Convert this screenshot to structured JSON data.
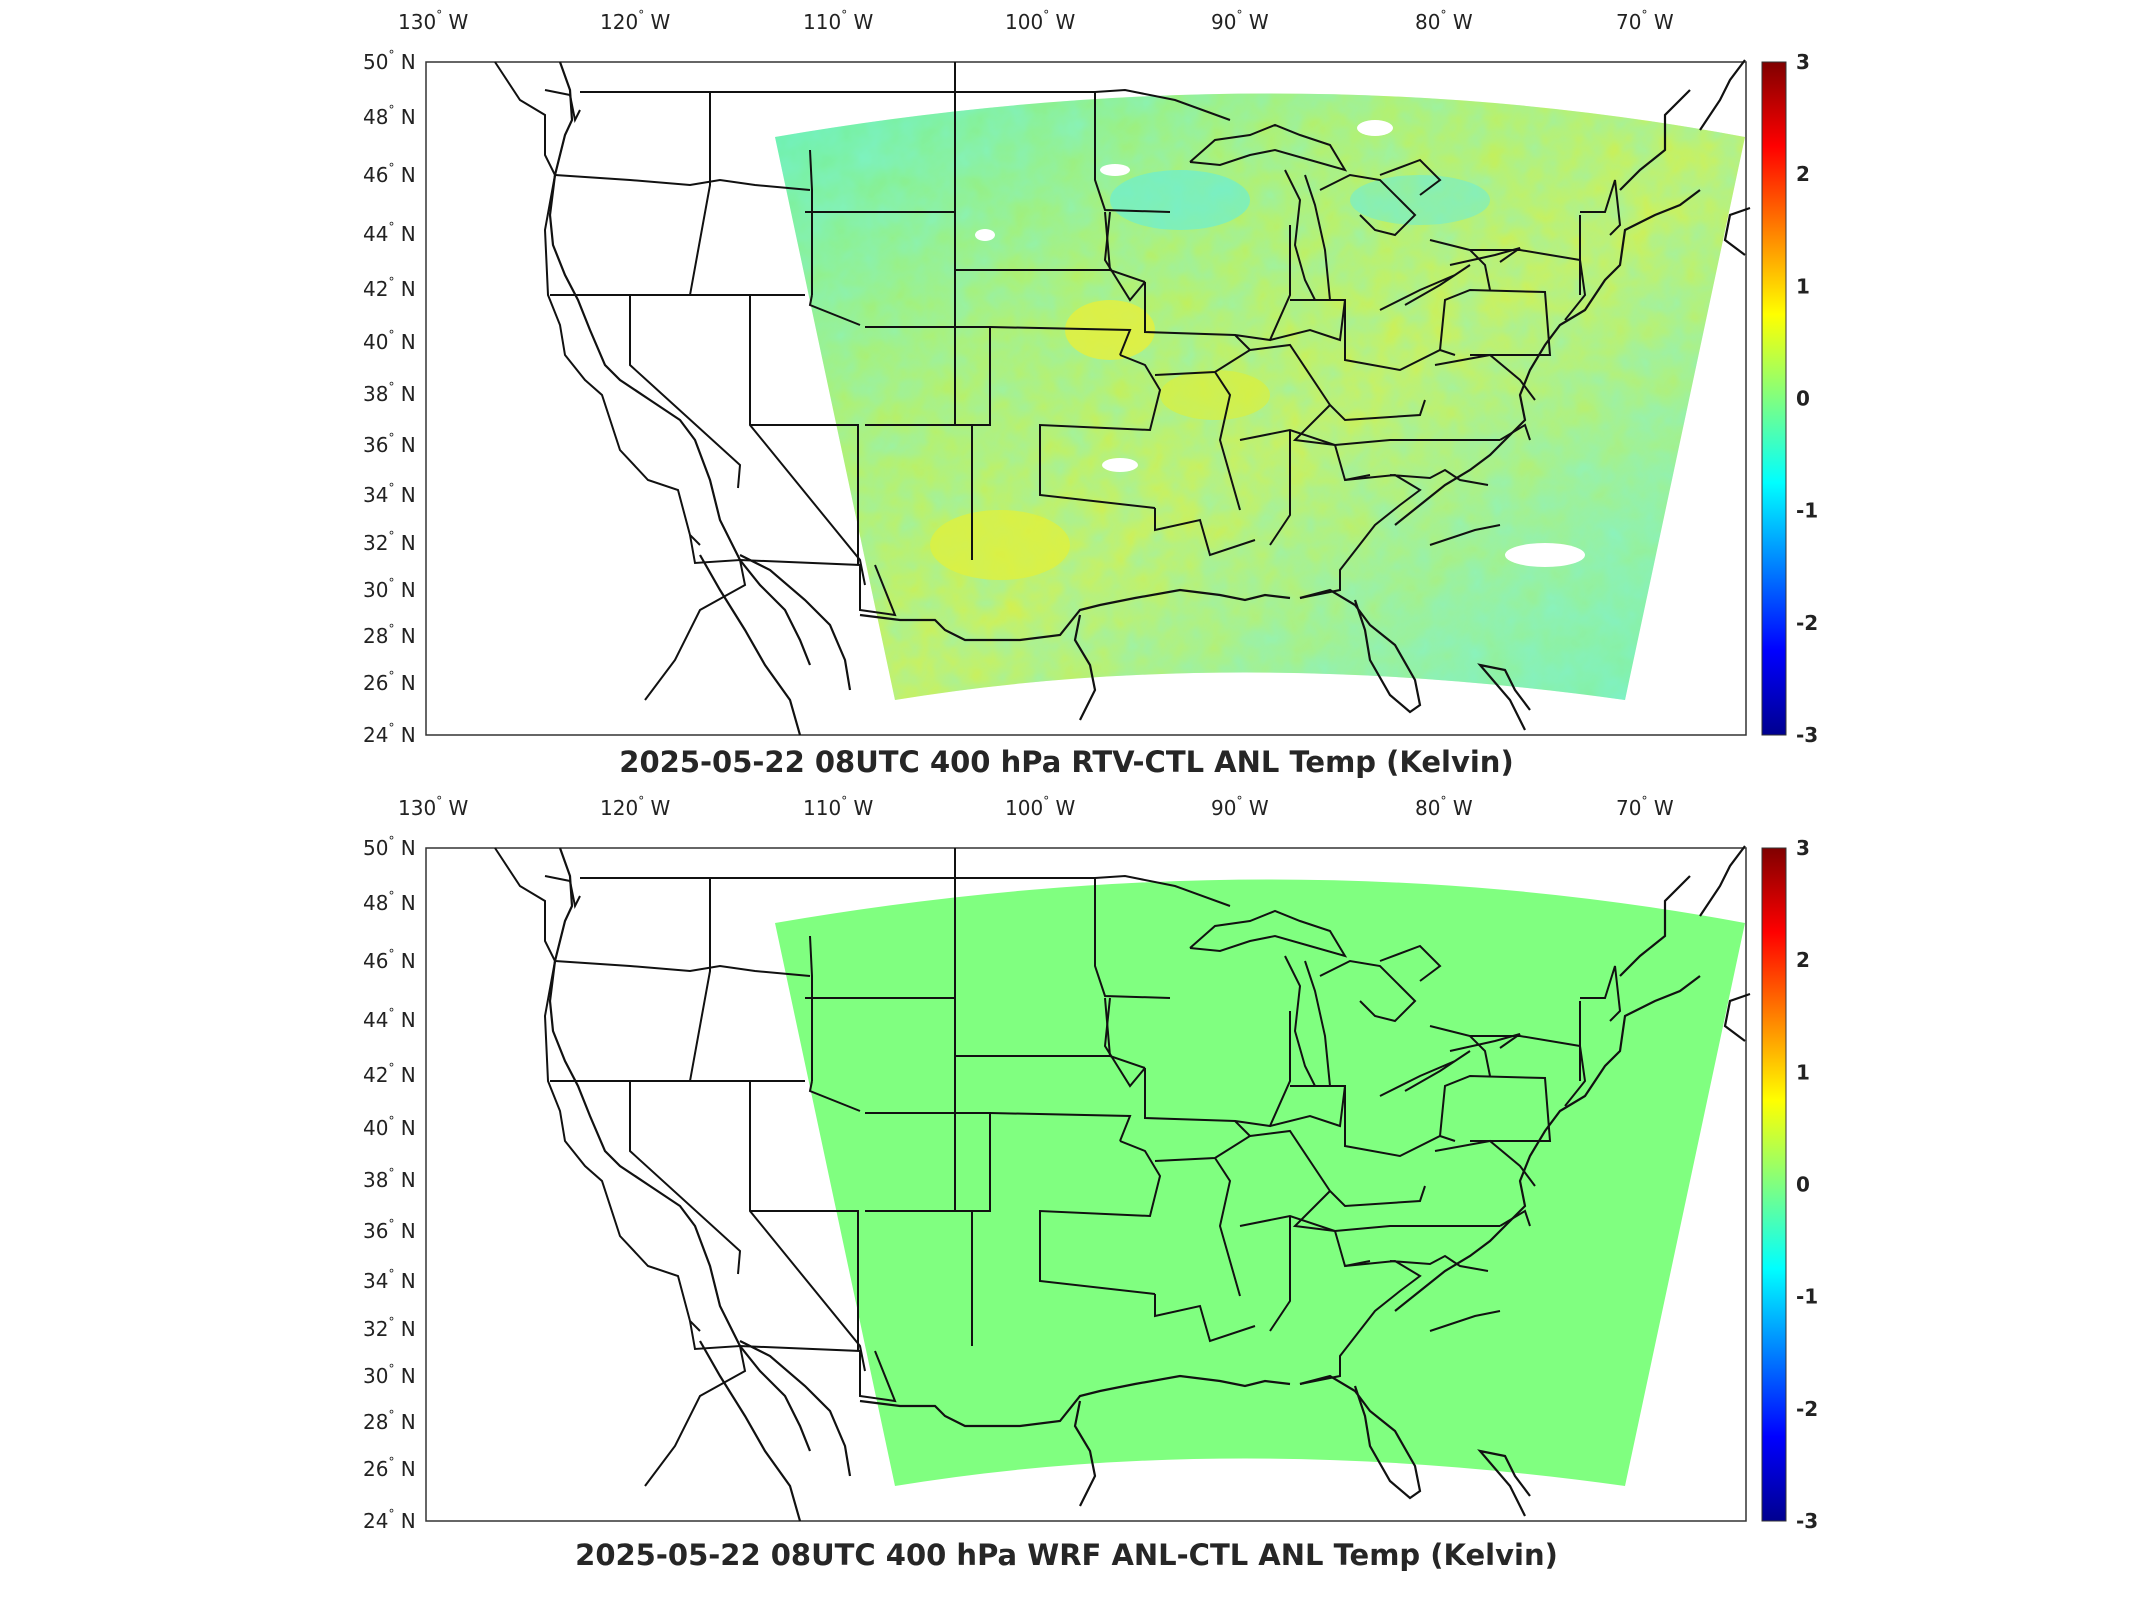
{
  "panels": [
    {
      "title": "2025-05-22 08UTC 400 hPa RTV-CTL ANL Temp (Kelvin)",
      "field": "varied",
      "lon_labels": [
        "130",
        "120",
        "110",
        "100",
        "90",
        "80",
        "70"
      ],
      "lon_suffix": "W",
      "lat_labels": [
        "50",
        "48",
        "46",
        "44",
        "42",
        "40",
        "38",
        "36",
        "34",
        "32",
        "30",
        "28",
        "26",
        "24"
      ],
      "lat_suffix": "N",
      "colorbar_ticks": [
        "3",
        "2",
        "1",
        "0",
        "-1",
        "-2",
        "-3"
      ]
    },
    {
      "title": "2025-05-22 08UTC 400 hPa WRF ANL-CTL ANL Temp (Kelvin)",
      "field": "uniform",
      "lon_labels": [
        "130",
        "120",
        "110",
        "100",
        "90",
        "80",
        "70"
      ],
      "lon_suffix": "W",
      "lat_labels": [
        "50",
        "48",
        "46",
        "44",
        "42",
        "40",
        "38",
        "36",
        "34",
        "32",
        "30",
        "28",
        "26",
        "24"
      ],
      "lat_suffix": "N",
      "colorbar_ticks": [
        "3",
        "2",
        "1",
        "0",
        "-1",
        "-2",
        "-3"
      ]
    }
  ],
  "colormap": [
    "#00008f",
    "#0000ff",
    "#0080ff",
    "#00ffff",
    "#80ff80",
    "#ffff00",
    "#ff8000",
    "#ff0000",
    "#800000"
  ],
  "uniform_field_color": "#80ff80",
  "colorbar_range": [
    -3,
    3
  ]
}
